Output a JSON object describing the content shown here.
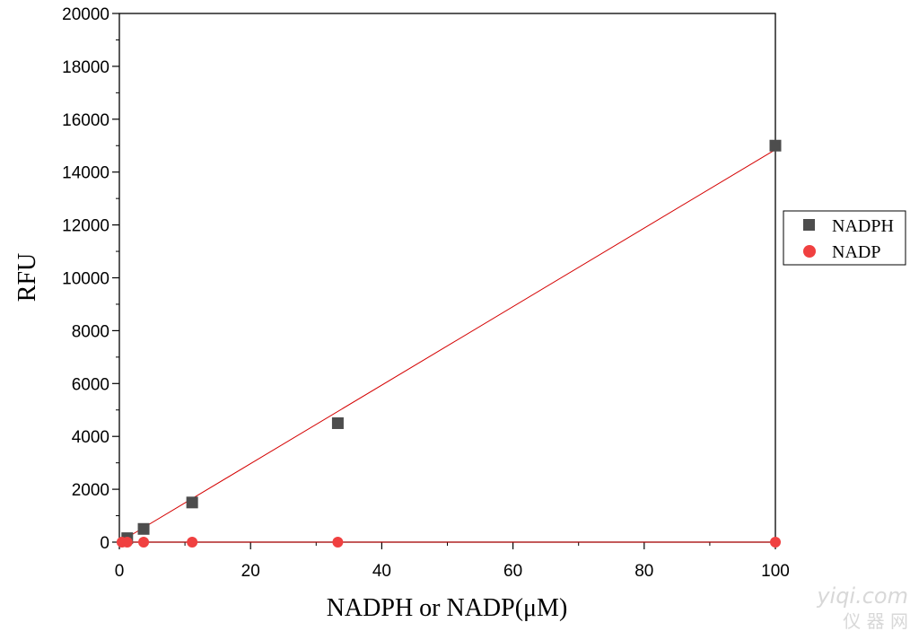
{
  "chart_data": {
    "type": "scatter",
    "xlabel": "NADPH or NADP(μM)",
    "ylabel": "RFU",
    "xlim": [
      0,
      100
    ],
    "ylim": [
      0,
      20000
    ],
    "x_ticks": [
      "0",
      "20",
      "40",
      "60",
      "80",
      "100"
    ],
    "y_ticks": [
      "0",
      "2000",
      "4000",
      "6000",
      "8000",
      "10000",
      "12000",
      "14000",
      "16000",
      "18000",
      "20000"
    ],
    "grid": false,
    "legend_position": "right",
    "series": [
      {
        "name": "NADPH",
        "marker": "square",
        "color": "#4d4d4d",
        "points": [
          {
            "x": 1.2,
            "y": 150
          },
          {
            "x": 3.7,
            "y": 500
          },
          {
            "x": 11.1,
            "y": 1500
          },
          {
            "x": 33.3,
            "y": 4500
          },
          {
            "x": 100,
            "y": 15000
          }
        ]
      },
      {
        "name": "NADP",
        "marker": "circle",
        "color": "#f04040",
        "points": [
          {
            "x": 0.4,
            "y": 0
          },
          {
            "x": 1.2,
            "y": 0
          },
          {
            "x": 3.7,
            "y": 0
          },
          {
            "x": 11.1,
            "y": 0
          },
          {
            "x": 33.3,
            "y": 0
          },
          {
            "x": 100,
            "y": 0
          }
        ]
      }
    ],
    "fit_lines": [
      {
        "series": "NADPH",
        "color": "#d40000",
        "from": {
          "x": 0,
          "y": 0
        },
        "to": {
          "x": 100,
          "y": 14850
        }
      },
      {
        "series": "NADP",
        "color": "#d40000",
        "from": {
          "x": 0,
          "y": 0
        },
        "to": {
          "x": 100,
          "y": 0
        }
      }
    ]
  },
  "watermark": {
    "latin": "yiqi.com",
    "cjk": "仪 器 网"
  }
}
